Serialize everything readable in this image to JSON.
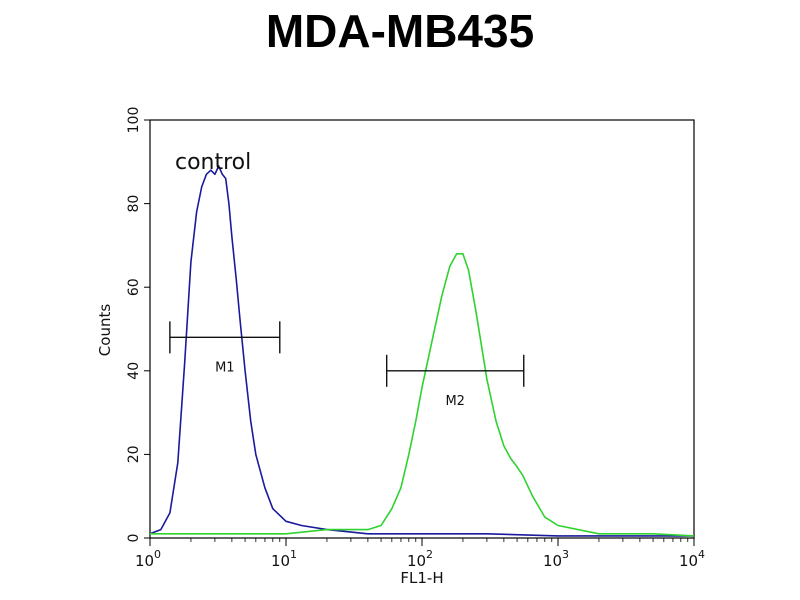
{
  "chart_data": {
    "type": "line",
    "title": "MDA-MB435",
    "xlabel": "FL1-H",
    "ylabel": "Counts",
    "x_scale": "log",
    "xlim": [
      1,
      10000
    ],
    "ylim": [
      0,
      100
    ],
    "x_ticks": [
      {
        "value": 1,
        "base": "10",
        "exp": "0"
      },
      {
        "value": 10,
        "base": "10",
        "exp": "1"
      },
      {
        "value": 100,
        "base": "10",
        "exp": "2"
      },
      {
        "value": 1000,
        "base": "10",
        "exp": "3"
      },
      {
        "value": 10000,
        "base": "10",
        "exp": "4"
      }
    ],
    "y_ticks": [
      "0",
      "20",
      "40",
      "60",
      "80",
      "100"
    ],
    "grid": false,
    "annotation": "control",
    "markers": [
      {
        "label": "M1",
        "x_start": 1.4,
        "x_end": 9.0,
        "y": 48
      },
      {
        "label": "M2",
        "x_start": 55,
        "x_end": 560,
        "y": 40
      }
    ],
    "series": [
      {
        "color": "#1a1a9c",
        "x": [
          1.0,
          1.2,
          1.4,
          1.6,
          1.8,
          2.0,
          2.2,
          2.4,
          2.6,
          2.8,
          3.0,
          3.2,
          3.4,
          3.6,
          3.8,
          4.0,
          4.3,
          4.6,
          5.0,
          5.5,
          6.0,
          7.0,
          8.0,
          10,
          13,
          20,
          40,
          100,
          300,
          1000,
          10000
        ],
        "y": [
          1,
          2,
          6,
          18,
          42,
          66,
          78,
          84,
          87,
          88,
          87,
          89,
          87,
          86,
          80,
          72,
          62,
          52,
          40,
          28,
          20,
          12,
          7,
          4,
          3,
          2,
          1,
          1,
          1,
          0.5,
          0.5
        ]
      },
      {
        "color": "#2fd22f",
        "x": [
          1.0,
          3,
          10,
          20,
          40,
          50,
          60,
          70,
          80,
          90,
          100,
          120,
          140,
          160,
          180,
          200,
          220,
          250,
          300,
          350,
          400,
          450,
          500,
          550,
          650,
          800,
          1000,
          2000,
          5000,
          10000
        ],
        "y": [
          1,
          1,
          1,
          2,
          2,
          3,
          7,
          12,
          20,
          28,
          36,
          48,
          58,
          65,
          68,
          68,
          64,
          54,
          38,
          28,
          22,
          19,
          17,
          15,
          10,
          5,
          3,
          1,
          1,
          0.5
        ]
      }
    ]
  }
}
